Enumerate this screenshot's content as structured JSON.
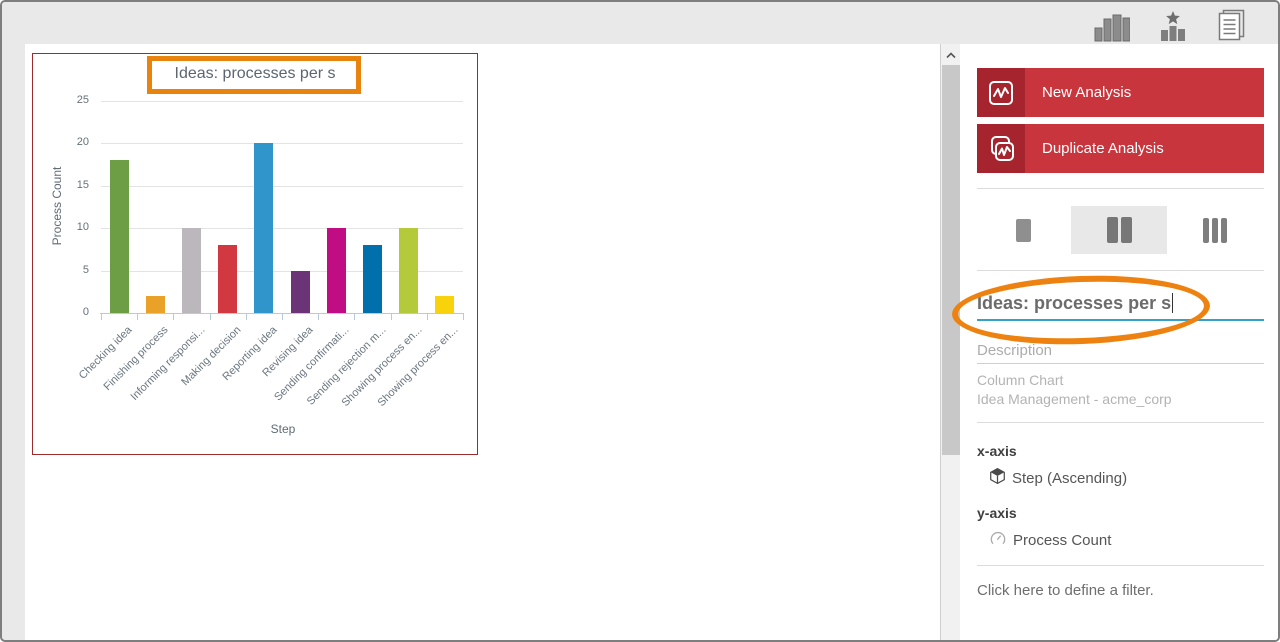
{
  "topbar": {
    "icons": [
      {
        "name": "column-chart-icon"
      },
      {
        "name": "ranking-chart-icon"
      },
      {
        "name": "report-icon"
      }
    ]
  },
  "chart_data": {
    "type": "bar",
    "title": "Ideas: processes per s",
    "xlabel": "Step",
    "ylabel": "Process Count",
    "categories": [
      "Checking idea",
      "Finishing process",
      "Informing responsi...",
      "Making decision",
      "Reporting idea",
      "Revising idea",
      "Sending confirmati...",
      "Sending rejection m...",
      "Showing process en...",
      "Showing process en..."
    ],
    "values": [
      18,
      2,
      10,
      8,
      20,
      5,
      10,
      8,
      10,
      2
    ],
    "bar_colors": [
      "#6D9E45",
      "#E9A227",
      "#BCB7BC",
      "#D2383F",
      "#3095CB",
      "#6A3476",
      "#C00D83",
      "#0070AC",
      "#B4CA3A",
      "#F8D20B"
    ],
    "yticks": [
      0,
      5,
      10,
      15,
      20,
      25
    ],
    "ylim": [
      0,
      25
    ],
    "grid": true,
    "legend": false
  },
  "sidebar": {
    "new_analysis_label": "New Analysis",
    "duplicate_analysis_label": "Duplicate Analysis",
    "layout_options": [
      {
        "name": "one-column",
        "selected": false
      },
      {
        "name": "two-column",
        "selected": true
      },
      {
        "name": "three-column",
        "selected": false
      }
    ],
    "title_input_value": "Ideas: processes per s",
    "description_placeholder": "Description",
    "chart_type_text": "Column Chart",
    "dataset_text": "Idea Management - acme_corp",
    "x_axis_heading": "x-axis",
    "x_axis_value": "Step (Ascending)",
    "y_axis_heading": "y-axis",
    "y_axis_value": "Process Count",
    "filter_link_text": "Click here to define a filter."
  },
  "colors": {
    "button_red": "#C9353D",
    "button_red_dark": "#A5242E",
    "highlight_orange": "#EE8211",
    "annotation_box_orange": "#E8830E",
    "panel_border_red": "#9E2B2B",
    "input_underline_blue": "#35A0C8"
  }
}
